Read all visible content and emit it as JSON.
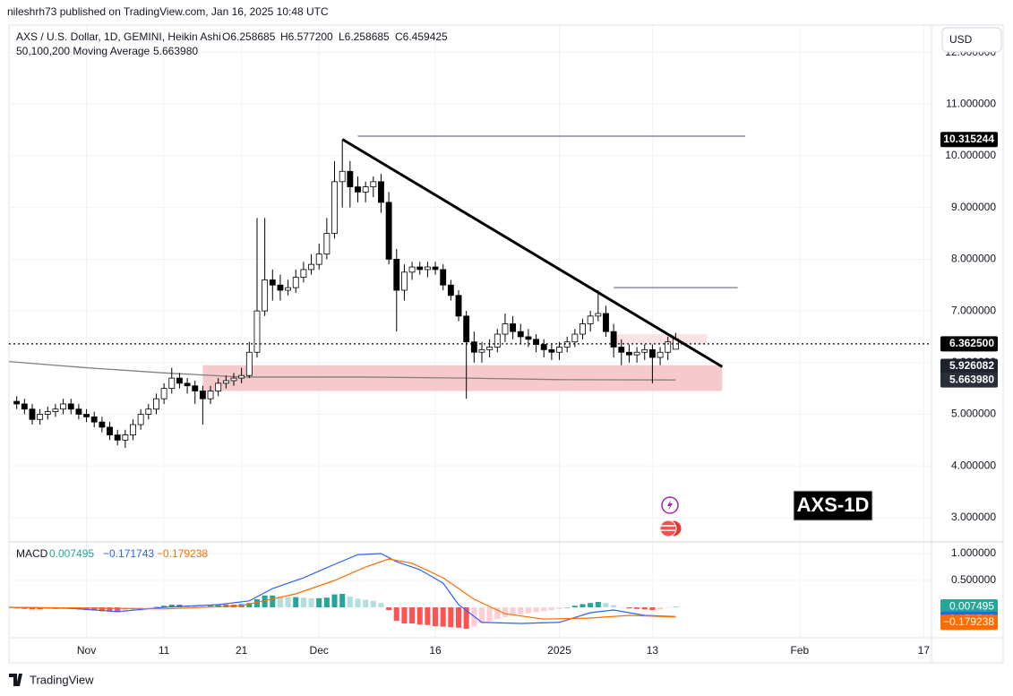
{
  "header": {
    "published": "nileshrh73 published on TradingView.com, Jan 16, 2025 10:48 UTC",
    "currency": "USD",
    "badge": "AXS-1D",
    "footer": "TradingView"
  },
  "chart_data": {
    "type": "candlestick",
    "title": "AXS / U.S. Dollar, 1D, GEMINI, Heikin Ashi",
    "ohlc_labels": [
      "O6.258685",
      "H6.577200",
      "L6.258685",
      "C6.459425"
    ],
    "indicator": "50,100,200 Moving Average",
    "xlim": [
      "2024-10-22",
      "2025-02-18"
    ],
    "xticks": [
      {
        "value": "2024-11-01",
        "label": "Nov"
      },
      {
        "value": "2024-11-11",
        "label": "11"
      },
      {
        "value": "2024-11-21",
        "label": "21"
      },
      {
        "value": "2024-12-01",
        "label": "Dec"
      },
      {
        "value": "2024-12-16",
        "label": "16"
      },
      {
        "value": "2025-01-01",
        "label": "2025"
      },
      {
        "value": "2025-01-13",
        "label": "13"
      },
      {
        "value": "2025-02-01",
        "label": "Feb"
      },
      {
        "value": "2025-02-17",
        "label": "17"
      }
    ],
    "ylim": [
      2.53,
      12.53
    ],
    "yticks": [
      {
        "value": 3,
        "label": "3.000000"
      },
      {
        "value": 4,
        "label": "4.000000"
      },
      {
        "value": 5,
        "label": "5.000000"
      },
      {
        "value": 6,
        "label": "6.000000"
      },
      {
        "value": 7,
        "label": "7.000000"
      },
      {
        "value": 8,
        "label": "8.000000"
      },
      {
        "value": 9,
        "label": "9.000000"
      },
      {
        "value": 10,
        "label": "10.000000"
      },
      {
        "value": 11,
        "label": "11.000000"
      },
      {
        "value": 12,
        "label": "12.000000"
      }
    ],
    "grid": true,
    "up_color": "#ffffff",
    "down_color": "#000000",
    "x": [
      "2024-10-23",
      "2024-10-24",
      "2024-10-25",
      "2024-10-26",
      "2024-10-27",
      "2024-10-28",
      "2024-10-29",
      "2024-10-30",
      "2024-10-31",
      "2024-11-01",
      "2024-11-02",
      "2024-11-03",
      "2024-11-04",
      "2024-11-05",
      "2024-11-06",
      "2024-11-07",
      "2024-11-08",
      "2024-11-09",
      "2024-11-10",
      "2024-11-11",
      "2024-11-12",
      "2024-11-13",
      "2024-11-14",
      "2024-11-15",
      "2024-11-16",
      "2024-11-17",
      "2024-11-18",
      "2024-11-19",
      "2024-11-20",
      "2024-11-21",
      "2024-11-22",
      "2024-11-23",
      "2024-11-24",
      "2024-11-25",
      "2024-11-26",
      "2024-11-27",
      "2024-11-28",
      "2024-11-29",
      "2024-11-30",
      "2024-12-01",
      "2024-12-02",
      "2024-12-03",
      "2024-12-04",
      "2024-12-05",
      "2024-12-06",
      "2024-12-07",
      "2024-12-08",
      "2024-12-09",
      "2024-12-10",
      "2024-12-11",
      "2024-12-12",
      "2024-12-13",
      "2024-12-14",
      "2024-12-15",
      "2024-12-16",
      "2024-12-17",
      "2024-12-18",
      "2024-12-19",
      "2024-12-20",
      "2024-12-21",
      "2024-12-22",
      "2024-12-23",
      "2024-12-24",
      "2024-12-25",
      "2024-12-26",
      "2024-12-27",
      "2024-12-28",
      "2024-12-29",
      "2024-12-30",
      "2024-12-31",
      "2025-01-01",
      "2025-01-02",
      "2025-01-03",
      "2025-01-04",
      "2025-01-05",
      "2025-01-06",
      "2025-01-07",
      "2025-01-08",
      "2025-01-09",
      "2025-01-10",
      "2025-01-11",
      "2025-01-12",
      "2025-01-13",
      "2025-01-14",
      "2025-01-15",
      "2025-01-16"
    ],
    "open": [
      5.25,
      5.2,
      5.1,
      4.9,
      5.0,
      5.05,
      5.1,
      5.2,
      5.1,
      5.0,
      4.95,
      4.85,
      4.75,
      4.6,
      4.5,
      4.6,
      4.8,
      5.0,
      5.1,
      5.3,
      5.5,
      5.7,
      5.6,
      5.55,
      5.45,
      5.3,
      5.45,
      5.6,
      5.65,
      5.7,
      5.75,
      6.2,
      7.0,
      7.6,
      7.5,
      7.4,
      7.45,
      7.65,
      7.8,
      7.9,
      8.1,
      8.5,
      9.5,
      9.7,
      9.4,
      9.3,
      9.4,
      9.5,
      9.1,
      8.0,
      7.4,
      7.75,
      7.85,
      7.8,
      7.85,
      7.8,
      7.5,
      7.3,
      6.9,
      6.4,
      6.2,
      6.25,
      6.3,
      6.55,
      6.75,
      6.6,
      6.5,
      6.45,
      6.35,
      6.25,
      6.2,
      6.3,
      6.4,
      6.55,
      6.75,
      6.9,
      6.95,
      6.6,
      6.3,
      6.2,
      6.15,
      6.2,
      6.25,
      6.1,
      6.2,
      6.258685
    ],
    "high": [
      5.35,
      5.3,
      5.2,
      5.1,
      5.15,
      5.2,
      5.3,
      5.3,
      5.2,
      5.1,
      5.05,
      4.95,
      4.85,
      4.7,
      4.7,
      4.9,
      5.1,
      5.2,
      5.4,
      5.6,
      5.9,
      5.8,
      5.7,
      5.65,
      5.55,
      5.55,
      5.7,
      5.75,
      5.8,
      5.9,
      6.4,
      8.8,
      8.8,
      7.8,
      7.7,
      7.6,
      7.8,
      7.95,
      8.1,
      8.3,
      8.8,
      9.9,
      10.3,
      9.9,
      9.6,
      9.5,
      9.6,
      9.65,
      9.3,
      8.2,
      7.9,
      7.95,
      7.95,
      7.95,
      7.95,
      7.9,
      7.6,
      7.4,
      7.0,
      6.6,
      6.4,
      6.45,
      6.65,
      6.95,
      6.9,
      6.75,
      6.65,
      6.55,
      6.45,
      6.35,
      6.4,
      6.5,
      6.65,
      6.85,
      7.0,
      7.4,
      7.1,
      6.75,
      6.45,
      6.35,
      6.3,
      6.35,
      6.35,
      6.3,
      6.5,
      6.5772
    ],
    "low": [
      5.1,
      5.0,
      4.8,
      4.8,
      4.9,
      4.95,
      5.0,
      5.0,
      4.9,
      4.85,
      4.75,
      4.65,
      4.5,
      4.4,
      4.35,
      4.5,
      4.7,
      4.9,
      5.0,
      5.2,
      5.4,
      5.5,
      5.4,
      5.2,
      4.8,
      5.2,
      5.35,
      5.5,
      5.55,
      5.6,
      5.7,
      6.1,
      6.9,
      7.2,
      7.2,
      7.3,
      7.35,
      7.55,
      7.7,
      7.8,
      8.0,
      8.4,
      9.0,
      9.0,
      9.1,
      9.1,
      9.2,
      8.9,
      7.9,
      6.6,
      7.2,
      7.6,
      7.7,
      7.65,
      7.7,
      7.4,
      7.2,
      6.8,
      5.3,
      6.0,
      6.0,
      6.1,
      6.2,
      6.4,
      6.45,
      6.35,
      6.3,
      6.2,
      6.1,
      6.05,
      6.05,
      6.2,
      6.3,
      6.45,
      6.6,
      6.8,
      6.5,
      6.1,
      5.95,
      6.0,
      6.0,
      6.05,
      5.6,
      5.95,
      6.05,
      6.258685
    ],
    "close": [
      5.2,
      5.1,
      4.9,
      5.0,
      5.05,
      5.1,
      5.2,
      5.1,
      5.0,
      4.95,
      4.85,
      4.75,
      4.6,
      4.5,
      4.6,
      4.8,
      5.0,
      5.1,
      5.3,
      5.5,
      5.7,
      5.6,
      5.55,
      5.45,
      5.3,
      5.45,
      5.6,
      5.65,
      5.7,
      5.75,
      6.2,
      7.0,
      7.6,
      7.5,
      7.4,
      7.45,
      7.65,
      7.8,
      7.9,
      8.1,
      8.5,
      9.5,
      9.7,
      9.4,
      9.3,
      9.4,
      9.5,
      9.1,
      8.0,
      7.4,
      7.75,
      7.85,
      7.8,
      7.85,
      7.8,
      7.5,
      7.3,
      6.9,
      6.4,
      6.2,
      6.25,
      6.3,
      6.55,
      6.75,
      6.6,
      6.5,
      6.45,
      6.35,
      6.25,
      6.2,
      6.3,
      6.4,
      6.55,
      6.75,
      6.9,
      6.95,
      6.6,
      6.3,
      6.2,
      6.15,
      6.2,
      6.25,
      6.1,
      6.2,
      6.4,
      6.459425
    ],
    "moving_average": {
      "color": "#8a7f80",
      "x": [
        "2024-10-22",
        "2024-11-01",
        "2024-11-11",
        "2024-11-21",
        "2024-12-07",
        "2024-12-20",
        "2025-01-01",
        "2025-01-16"
      ],
      "values": [
        6.02,
        5.9,
        5.8,
        5.72,
        5.72,
        5.7,
        5.67,
        5.66398
      ]
    },
    "price_labels": [
      {
        "value": 10.315244,
        "label": "10.315244",
        "color": "#000000"
      },
      {
        "value": 6.3625,
        "label": "6.362500",
        "color": "#000000"
      },
      {
        "value": 5.926082,
        "label": "5.926082",
        "color": "#1e222d"
      },
      {
        "value": 5.66398,
        "label": "5.663980",
        "color": "#2a2e39"
      }
    ],
    "drawings": {
      "trendline": {
        "x": [
          "2024-12-04",
          "2025-01-22"
        ],
        "y": [
          10.32,
          5.92
        ],
        "color": "#000000"
      },
      "levels": [
        {
          "x": [
            "2024-12-06",
            "2025-01-25"
          ],
          "y": 10.38,
          "color": "#a3a6b4"
        },
        {
          "x": [
            "2025-01-08",
            "2025-01-24"
          ],
          "y": 7.45,
          "color": "#a3a6b4"
        }
      ],
      "zones": [
        {
          "x": [
            "2024-11-16",
            "2025-01-22"
          ],
          "y": [
            5.45,
            5.95
          ],
          "color": "#f5c0c3"
        },
        {
          "x": [
            "2025-01-08",
            "2025-01-20"
          ],
          "y": [
            6.35,
            6.55
          ],
          "color": "#fbdde0"
        }
      ]
    },
    "macd": {
      "title": "MACD",
      "ylim": [
        -0.567,
        1.217
      ],
      "yticks": [
        {
          "value": 0.5,
          "label": "0.500000"
        },
        {
          "value": 1,
          "label": "1.000000"
        }
      ],
      "histogram": [
        -0.02,
        -0.03,
        -0.04,
        -0.04,
        -0.03,
        -0.03,
        -0.02,
        -0.03,
        -0.04,
        -0.05,
        -0.06,
        -0.07,
        -0.08,
        -0.09,
        -0.08,
        -0.06,
        -0.04,
        -0.02,
        0.01,
        0.03,
        0.05,
        0.05,
        0.04,
        0.03,
        0.02,
        0.03,
        0.04,
        0.05,
        0.05,
        0.06,
        0.08,
        0.15,
        0.22,
        0.22,
        0.2,
        0.19,
        0.19,
        0.18,
        0.17,
        0.17,
        0.18,
        0.24,
        0.25,
        0.2,
        0.16,
        0.14,
        0.12,
        0.08,
        -0.05,
        -0.25,
        -0.3,
        -0.3,
        -0.32,
        -0.33,
        -0.35,
        -0.36,
        -0.37,
        -0.38,
        -0.4,
        -0.36,
        -0.3,
        -0.26,
        -0.22,
        -0.18,
        -0.15,
        -0.13,
        -0.11,
        -0.09,
        -0.07,
        -0.05,
        -0.03,
        0.0,
        0.03,
        0.06,
        0.08,
        0.1,
        0.08,
        0.04,
        0.0,
        -0.02,
        -0.03,
        -0.04,
        -0.05,
        -0.04,
        -0.01,
        0.007495
      ],
      "lines": [
        {
          "color": "#2962ff",
          "x": [
            "2024-10-22",
            "2024-10-30",
            "2024-11-05",
            "2024-11-11",
            "2024-11-18",
            "2024-11-22",
            "2024-11-25",
            "2024-11-29",
            "2024-12-03",
            "2024-12-06",
            "2024-12-09",
            "2024-12-11",
            "2024-12-14",
            "2024-12-17",
            "2024-12-19",
            "2024-12-22",
            "2024-12-27",
            "2025-01-01",
            "2025-01-05",
            "2025-01-08",
            "2025-01-12",
            "2025-01-16"
          ],
          "values": [
            0.0,
            -0.02,
            -0.08,
            0.0,
            0.05,
            0.12,
            0.35,
            0.55,
            0.8,
            0.98,
            1.0,
            0.85,
            0.7,
            0.45,
            0.05,
            -0.28,
            -0.3,
            -0.28,
            -0.1,
            -0.05,
            -0.15,
            -0.171743
          ]
        },
        {
          "color": "#ff6d00",
          "x": [
            "2024-10-22",
            "2024-11-11",
            "2024-11-21",
            "2024-11-28",
            "2024-12-03",
            "2024-12-07",
            "2024-12-10",
            "2024-12-13",
            "2024-12-17",
            "2024-12-21",
            "2024-12-25",
            "2024-12-30",
            "2025-01-05",
            "2025-01-10",
            "2025-01-16"
          ],
          "values": [
            0.0,
            -0.03,
            0.03,
            0.25,
            0.5,
            0.75,
            0.9,
            0.82,
            0.55,
            0.15,
            -0.12,
            -0.22,
            -0.2,
            -0.15,
            -0.179238
          ]
        }
      ],
      "value_labels": [
        {
          "value": 0.007495,
          "label": "0.007495",
          "color": "#26a69a"
        },
        {
          "value": -0.171743,
          "label": "−0.171743",
          "color": "#2962ff"
        },
        {
          "value": -0.179238,
          "label": "−0.179238",
          "color": "#ff6d00"
        }
      ]
    }
  }
}
